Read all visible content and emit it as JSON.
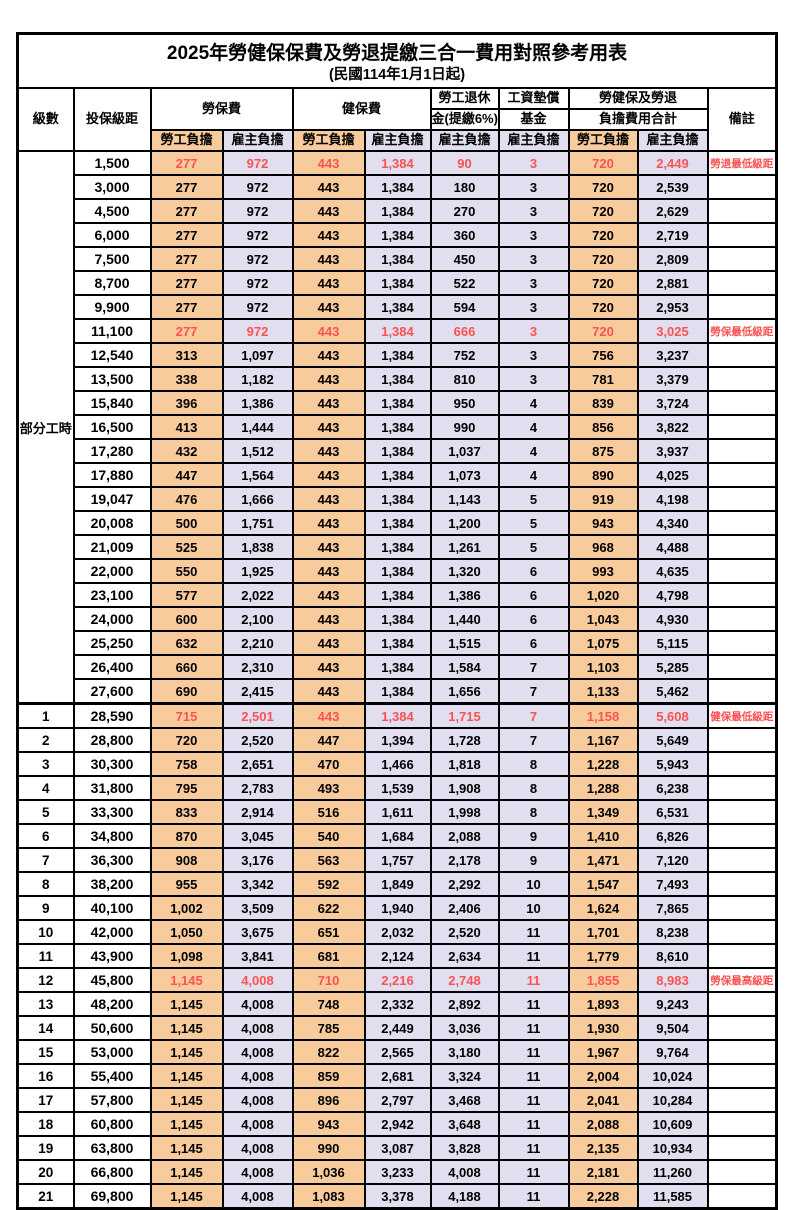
{
  "title": "2025年勞健保保費及勞退提繳三合一費用對照參考用表",
  "subtitle": "(民國114年1月1日起)",
  "colors": {
    "employee_column_bg": "#F8CB9C",
    "employer_column_bg": "#E0DEEF",
    "highlight_text": "#FB5252",
    "grid": "#000000"
  },
  "header": {
    "level": "級數",
    "bracket": "投保級距",
    "labor_insurance": "勞保費",
    "health_insurance": "健保費",
    "pension_line1": "勞工退休",
    "pension_line2": "金(提繳6%)",
    "wage_fund_line1": "工資墊償",
    "wage_fund_line2": "基金",
    "total_line1": "勞健保及勞退",
    "total_line2": "負擔費用合計",
    "remark": "備註",
    "employee": "勞工負擔",
    "employer": "雇主負擔"
  },
  "part_time_label": "部分工時",
  "rows": [
    {
      "level": "",
      "bracket": "1,500",
      "values": [
        "277",
        "972",
        "443",
        "1,384",
        "90",
        "3",
        "720",
        "2,449"
      ],
      "remark": "勞退最低級距",
      "highlight": true
    },
    {
      "level": "",
      "bracket": "3,000",
      "values": [
        "277",
        "972",
        "443",
        "1,384",
        "180",
        "3",
        "720",
        "2,539"
      ],
      "remark": "",
      "highlight": false
    },
    {
      "level": "",
      "bracket": "4,500",
      "values": [
        "277",
        "972",
        "443",
        "1,384",
        "270",
        "3",
        "720",
        "2,629"
      ],
      "remark": "",
      "highlight": false
    },
    {
      "level": "",
      "bracket": "6,000",
      "values": [
        "277",
        "972",
        "443",
        "1,384",
        "360",
        "3",
        "720",
        "2,719"
      ],
      "remark": "",
      "highlight": false
    },
    {
      "level": "",
      "bracket": "7,500",
      "values": [
        "277",
        "972",
        "443",
        "1,384",
        "450",
        "3",
        "720",
        "2,809"
      ],
      "remark": "",
      "highlight": false
    },
    {
      "level": "",
      "bracket": "8,700",
      "values": [
        "277",
        "972",
        "443",
        "1,384",
        "522",
        "3",
        "720",
        "2,881"
      ],
      "remark": "",
      "highlight": false
    },
    {
      "level": "",
      "bracket": "9,900",
      "values": [
        "277",
        "972",
        "443",
        "1,384",
        "594",
        "3",
        "720",
        "2,953"
      ],
      "remark": "",
      "highlight": false
    },
    {
      "level": "",
      "bracket": "11,100",
      "values": [
        "277",
        "972",
        "443",
        "1,384",
        "666",
        "3",
        "720",
        "3,025"
      ],
      "remark": "勞保最低級距",
      "highlight": true
    },
    {
      "level": "",
      "bracket": "12,540",
      "values": [
        "313",
        "1,097",
        "443",
        "1,384",
        "752",
        "3",
        "756",
        "3,237"
      ],
      "remark": "",
      "highlight": false
    },
    {
      "level": "",
      "bracket": "13,500",
      "values": [
        "338",
        "1,182",
        "443",
        "1,384",
        "810",
        "3",
        "781",
        "3,379"
      ],
      "remark": "",
      "highlight": false
    },
    {
      "level": "",
      "bracket": "15,840",
      "values": [
        "396",
        "1,386",
        "443",
        "1,384",
        "950",
        "4",
        "839",
        "3,724"
      ],
      "remark": "",
      "highlight": false
    },
    {
      "level": "",
      "bracket": "16,500",
      "values": [
        "413",
        "1,444",
        "443",
        "1,384",
        "990",
        "4",
        "856",
        "3,822"
      ],
      "remark": "",
      "highlight": false
    },
    {
      "level": "",
      "bracket": "17,280",
      "values": [
        "432",
        "1,512",
        "443",
        "1,384",
        "1,037",
        "4",
        "875",
        "3,937"
      ],
      "remark": "",
      "highlight": false
    },
    {
      "level": "",
      "bracket": "17,880",
      "values": [
        "447",
        "1,564",
        "443",
        "1,384",
        "1,073",
        "4",
        "890",
        "4,025"
      ],
      "remark": "",
      "highlight": false
    },
    {
      "level": "",
      "bracket": "19,047",
      "values": [
        "476",
        "1,666",
        "443",
        "1,384",
        "1,143",
        "5",
        "919",
        "4,198"
      ],
      "remark": "",
      "highlight": false
    },
    {
      "level": "",
      "bracket": "20,008",
      "values": [
        "500",
        "1,751",
        "443",
        "1,384",
        "1,200",
        "5",
        "943",
        "4,340"
      ],
      "remark": "",
      "highlight": false
    },
    {
      "level": "",
      "bracket": "21,009",
      "values": [
        "525",
        "1,838",
        "443",
        "1,384",
        "1,261",
        "5",
        "968",
        "4,488"
      ],
      "remark": "",
      "highlight": false
    },
    {
      "level": "",
      "bracket": "22,000",
      "values": [
        "550",
        "1,925",
        "443",
        "1,384",
        "1,320",
        "6",
        "993",
        "4,635"
      ],
      "remark": "",
      "highlight": false
    },
    {
      "level": "",
      "bracket": "23,100",
      "values": [
        "577",
        "2,022",
        "443",
        "1,384",
        "1,386",
        "6",
        "1,020",
        "4,798"
      ],
      "remark": "",
      "highlight": false
    },
    {
      "level": "",
      "bracket": "24,000",
      "values": [
        "600",
        "2,100",
        "443",
        "1,384",
        "1,440",
        "6",
        "1,043",
        "4,930"
      ],
      "remark": "",
      "highlight": false
    },
    {
      "level": "",
      "bracket": "25,250",
      "values": [
        "632",
        "2,210",
        "443",
        "1,384",
        "1,515",
        "6",
        "1,075",
        "5,115"
      ],
      "remark": "",
      "highlight": false
    },
    {
      "level": "",
      "bracket": "26,400",
      "values": [
        "660",
        "2,310",
        "443",
        "1,384",
        "1,584",
        "7",
        "1,103",
        "5,285"
      ],
      "remark": "",
      "highlight": false
    },
    {
      "level": "",
      "bracket": "27,600",
      "values": [
        "690",
        "2,415",
        "443",
        "1,384",
        "1,656",
        "7",
        "1,133",
        "5,462"
      ],
      "remark": "",
      "highlight": false
    },
    {
      "level": "1",
      "bracket": "28,590",
      "values": [
        "715",
        "2,501",
        "443",
        "1,384",
        "1,715",
        "7",
        "1,158",
        "5,608"
      ],
      "remark": "健保最低級距",
      "highlight": true
    },
    {
      "level": "2",
      "bracket": "28,800",
      "values": [
        "720",
        "2,520",
        "447",
        "1,394",
        "1,728",
        "7",
        "1,167",
        "5,649"
      ],
      "remark": "",
      "highlight": false
    },
    {
      "level": "3",
      "bracket": "30,300",
      "values": [
        "758",
        "2,651",
        "470",
        "1,466",
        "1,818",
        "8",
        "1,228",
        "5,943"
      ],
      "remark": "",
      "highlight": false
    },
    {
      "level": "4",
      "bracket": "31,800",
      "values": [
        "795",
        "2,783",
        "493",
        "1,539",
        "1,908",
        "8",
        "1,288",
        "6,238"
      ],
      "remark": "",
      "highlight": false
    },
    {
      "level": "5",
      "bracket": "33,300",
      "values": [
        "833",
        "2,914",
        "516",
        "1,611",
        "1,998",
        "8",
        "1,349",
        "6,531"
      ],
      "remark": "",
      "highlight": false
    },
    {
      "level": "6",
      "bracket": "34,800",
      "values": [
        "870",
        "3,045",
        "540",
        "1,684",
        "2,088",
        "9",
        "1,410",
        "6,826"
      ],
      "remark": "",
      "highlight": false
    },
    {
      "level": "7",
      "bracket": "36,300",
      "values": [
        "908",
        "3,176",
        "563",
        "1,757",
        "2,178",
        "9",
        "1,471",
        "7,120"
      ],
      "remark": "",
      "highlight": false
    },
    {
      "level": "8",
      "bracket": "38,200",
      "values": [
        "955",
        "3,342",
        "592",
        "1,849",
        "2,292",
        "10",
        "1,547",
        "7,493"
      ],
      "remark": "",
      "highlight": false
    },
    {
      "level": "9",
      "bracket": "40,100",
      "values": [
        "1,002",
        "3,509",
        "622",
        "1,940",
        "2,406",
        "10",
        "1,624",
        "7,865"
      ],
      "remark": "",
      "highlight": false
    },
    {
      "level": "10",
      "bracket": "42,000",
      "values": [
        "1,050",
        "3,675",
        "651",
        "2,032",
        "2,520",
        "11",
        "1,701",
        "8,238"
      ],
      "remark": "",
      "highlight": false
    },
    {
      "level": "11",
      "bracket": "43,900",
      "values": [
        "1,098",
        "3,841",
        "681",
        "2,124",
        "2,634",
        "11",
        "1,779",
        "8,610"
      ],
      "remark": "",
      "highlight": false
    },
    {
      "level": "12",
      "bracket": "45,800",
      "values": [
        "1,145",
        "4,008",
        "710",
        "2,216",
        "2,748",
        "11",
        "1,855",
        "8,983"
      ],
      "remark": "勞保最高級距",
      "highlight": true
    },
    {
      "level": "13",
      "bracket": "48,200",
      "values": [
        "1,145",
        "4,008",
        "748",
        "2,332",
        "2,892",
        "11",
        "1,893",
        "9,243"
      ],
      "remark": "",
      "highlight": false
    },
    {
      "level": "14",
      "bracket": "50,600",
      "values": [
        "1,145",
        "4,008",
        "785",
        "2,449",
        "3,036",
        "11",
        "1,930",
        "9,504"
      ],
      "remark": "",
      "highlight": false
    },
    {
      "level": "15",
      "bracket": "53,000",
      "values": [
        "1,145",
        "4,008",
        "822",
        "2,565",
        "3,180",
        "11",
        "1,967",
        "9,764"
      ],
      "remark": "",
      "highlight": false
    },
    {
      "level": "16",
      "bracket": "55,400",
      "values": [
        "1,145",
        "4,008",
        "859",
        "2,681",
        "3,324",
        "11",
        "2,004",
        "10,024"
      ],
      "remark": "",
      "highlight": false
    },
    {
      "level": "17",
      "bracket": "57,800",
      "values": [
        "1,145",
        "4,008",
        "896",
        "2,797",
        "3,468",
        "11",
        "2,041",
        "10,284"
      ],
      "remark": "",
      "highlight": false
    },
    {
      "level": "18",
      "bracket": "60,800",
      "values": [
        "1,145",
        "4,008",
        "943",
        "2,942",
        "3,648",
        "11",
        "2,088",
        "10,609"
      ],
      "remark": "",
      "highlight": false
    },
    {
      "level": "19",
      "bracket": "63,800",
      "values": [
        "1,145",
        "4,008",
        "990",
        "3,087",
        "3,828",
        "11",
        "2,135",
        "10,934"
      ],
      "remark": "",
      "highlight": false
    },
    {
      "level": "20",
      "bracket": "66,800",
      "values": [
        "1,145",
        "4,008",
        "1,036",
        "3,233",
        "4,008",
        "11",
        "2,181",
        "11,260"
      ],
      "remark": "",
      "highlight": false
    },
    {
      "level": "21",
      "bracket": "69,800",
      "values": [
        "1,145",
        "4,008",
        "1,083",
        "3,378",
        "4,188",
        "11",
        "2,228",
        "11,585"
      ],
      "remark": "",
      "highlight": false
    }
  ]
}
